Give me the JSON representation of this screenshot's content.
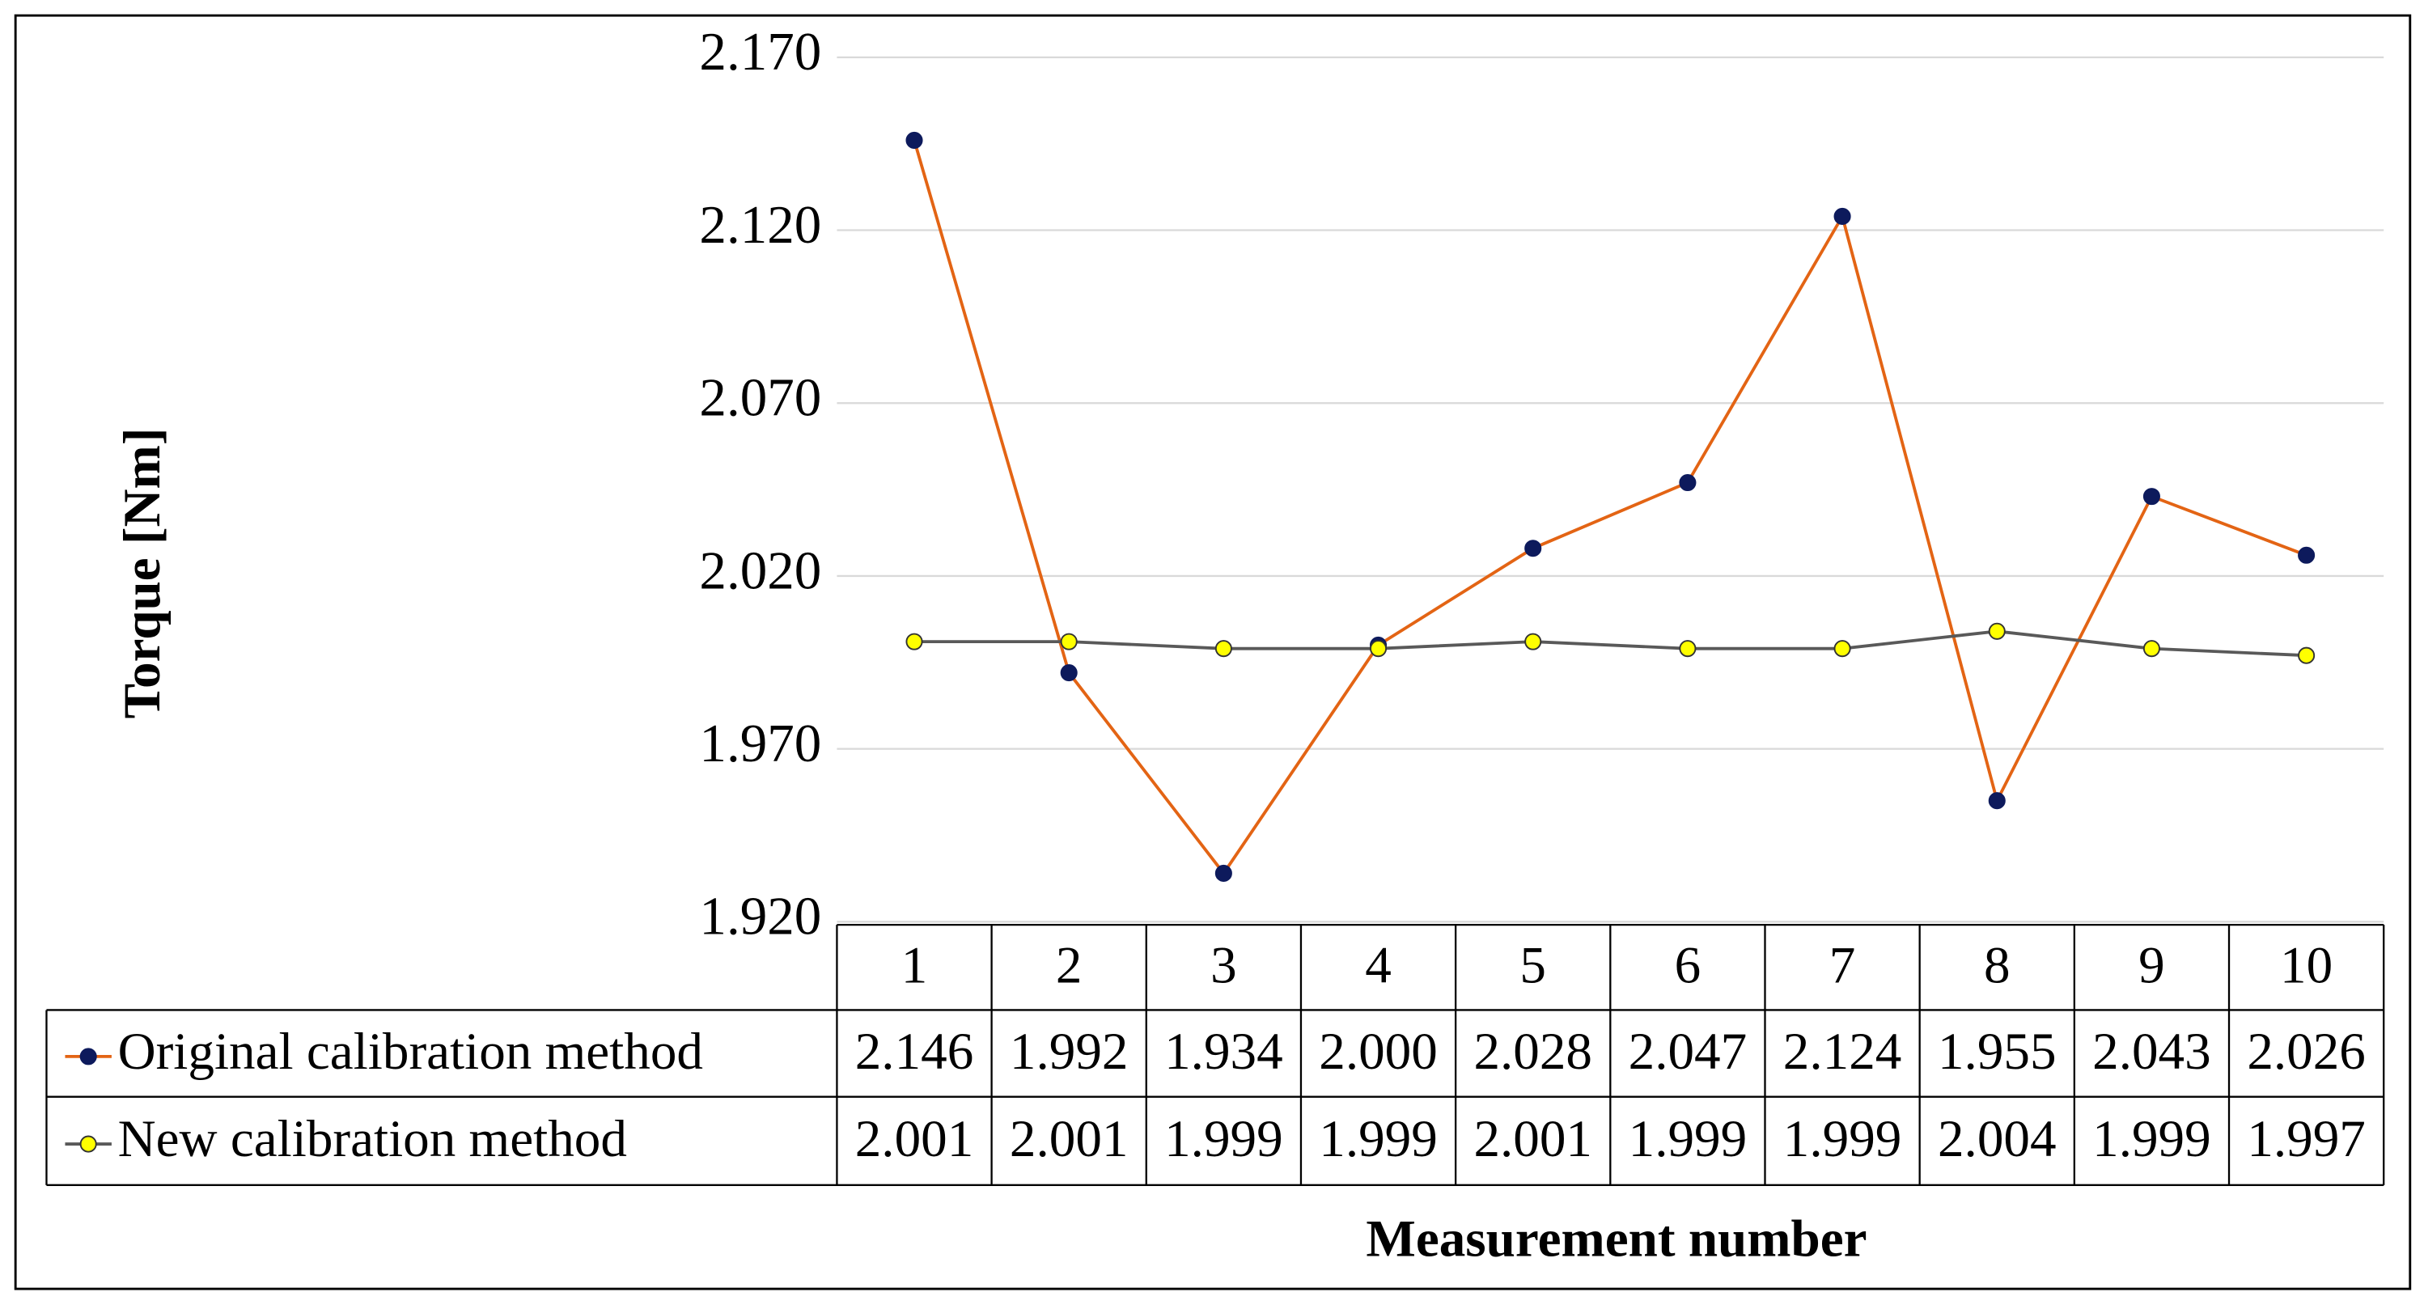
{
  "chart_data": {
    "type": "line",
    "y_label": "Torque [Nm]",
    "x_label": "Measurement number",
    "categories": [
      "1",
      "2",
      "3",
      "4",
      "5",
      "6",
      "7",
      "8",
      "9",
      "10"
    ],
    "series": [
      {
        "name": "Original calibration method",
        "color": "#e36414",
        "marker_color": "#0d1a5c",
        "values": [
          2.146,
          1.992,
          1.934,
          2.0,
          2.028,
          2.047,
          2.124,
          1.955,
          2.043,
          2.026
        ],
        "value_labels": [
          "2.146",
          "1.992",
          "1.934",
          "2.000",
          "2.028",
          "2.047",
          "2.124",
          "1.955",
          "2.043",
          "2.026"
        ]
      },
      {
        "name": "New calibration method",
        "color": "#595959",
        "marker_color": "#ffff00",
        "values": [
          2.001,
          2.001,
          1.999,
          1.999,
          2.001,
          1.999,
          1.999,
          2.004,
          1.999,
          1.997
        ],
        "value_labels": [
          "2.001",
          "2.001",
          "1.999",
          "1.999",
          "2.001",
          "1.999",
          "1.999",
          "2.004",
          "1.999",
          "1.997"
        ]
      }
    ],
    "ylim": [
      1.92,
      2.17
    ],
    "yticks": [
      {
        "value": 1.92,
        "label": "1.920"
      },
      {
        "value": 1.97,
        "label": "1.970"
      },
      {
        "value": 2.02,
        "label": "2.020"
      },
      {
        "value": 2.07,
        "label": "2.070"
      },
      {
        "value": 2.12,
        "label": "2.120"
      },
      {
        "value": 2.17,
        "label": "2.170"
      }
    ],
    "grid": true
  }
}
